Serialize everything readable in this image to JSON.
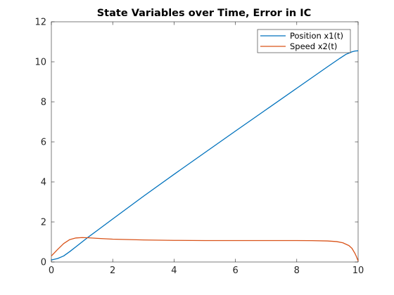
{
  "chart_data": {
    "type": "line",
    "title": "State Variables over Time, Error in IC",
    "xlabel": "",
    "ylabel": "",
    "xlim": [
      0,
      10
    ],
    "ylim": [
      0,
      12
    ],
    "xticks": [
      "0",
      "2",
      "4",
      "6",
      "8",
      "10"
    ],
    "yticks": [
      "0",
      "2",
      "4",
      "6",
      "8",
      "10",
      "12"
    ],
    "grid": false,
    "legend_position": "top-right",
    "series": [
      {
        "name": "Position x1(t)",
        "color": "#0072BD",
        "points": [
          [
            0,
            0.1
          ],
          [
            0.2,
            0.17
          ],
          [
            0.4,
            0.3
          ],
          [
            0.6,
            0.52
          ],
          [
            0.8,
            0.76
          ],
          [
            1.0,
            1.0
          ],
          [
            1.2,
            1.24
          ],
          [
            1.5,
            1.58
          ],
          [
            2,
            2.15
          ],
          [
            3,
            3.28
          ],
          [
            4,
            4.38
          ],
          [
            5,
            5.46
          ],
          [
            6,
            6.54
          ],
          [
            7,
            7.61
          ],
          [
            8,
            8.68
          ],
          [
            9,
            9.75
          ],
          [
            9.4,
            10.17
          ],
          [
            9.6,
            10.37
          ],
          [
            9.8,
            10.5
          ],
          [
            9.9,
            10.54
          ],
          [
            10,
            10.55
          ]
        ]
      },
      {
        "name": "Speed x2(t)",
        "color": "#D95319",
        "points": [
          [
            0,
            0.3
          ],
          [
            0.2,
            0.62
          ],
          [
            0.4,
            0.92
          ],
          [
            0.6,
            1.12
          ],
          [
            0.8,
            1.2
          ],
          [
            1.0,
            1.22
          ],
          [
            1.2,
            1.21
          ],
          [
            1.5,
            1.18
          ],
          [
            2,
            1.14
          ],
          [
            3,
            1.1
          ],
          [
            4,
            1.08
          ],
          [
            5,
            1.07
          ],
          [
            6,
            1.07
          ],
          [
            7,
            1.07
          ],
          [
            8,
            1.07
          ],
          [
            8.5,
            1.065
          ],
          [
            9,
            1.05
          ],
          [
            9.3,
            1.02
          ],
          [
            9.5,
            0.96
          ],
          [
            9.7,
            0.82
          ],
          [
            9.8,
            0.68
          ],
          [
            9.9,
            0.42
          ],
          [
            9.95,
            0.25
          ],
          [
            10,
            0.05
          ]
        ]
      }
    ]
  }
}
